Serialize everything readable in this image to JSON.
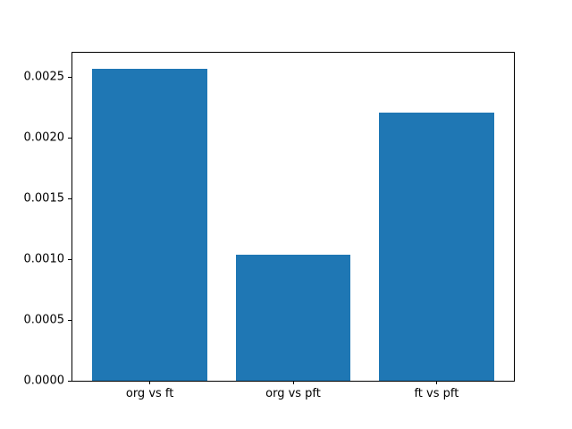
{
  "figure": {
    "background_color": "#ffffff",
    "frame_color": "#000000"
  },
  "chart_data": {
    "type": "bar",
    "title": "",
    "xlabel": "",
    "ylabel": "",
    "categories": [
      "org vs ft",
      "org vs pft",
      "ft vs pft"
    ],
    "x": [
      0,
      1,
      2
    ],
    "values": [
      0.00257,
      0.00104,
      0.00221
    ],
    "bar_width": 0.8,
    "bar_color": "#1f77b4",
    "tick_color": "#000000",
    "xlim": [
      -0.54,
      2.54
    ],
    "ylim": [
      0,
      0.0027
    ],
    "ytick_values": [
      0.0,
      0.0005,
      0.001,
      0.0015,
      0.002,
      0.0025
    ],
    "ytick_labels": [
      "0.0000",
      "0.0005",
      "0.0010",
      "0.0015",
      "0.0020",
      "0.0025"
    ],
    "grid": false,
    "legend": null
  }
}
